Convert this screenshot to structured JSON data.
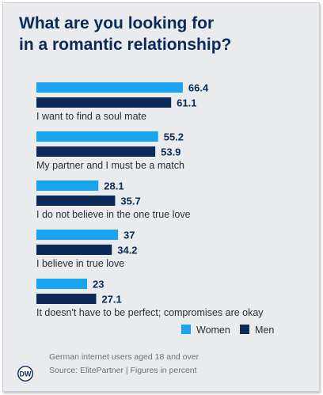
{
  "title_lines": [
    "What are you looking for",
    "in a romantic relationship?"
  ],
  "chart_data": {
    "type": "bar",
    "title": "What are you looking for in a romantic relationship?",
    "categories": [
      "I want to find a soul mate",
      "My partner and I must be a match",
      "I do not believe in the one true love",
      "I believe in true love",
      "It doesn't have to be perfect; compromises are okay"
    ],
    "series": [
      {
        "name": "Women",
        "values": [
          66.4,
          55.2,
          28.1,
          37,
          23
        ],
        "labels": [
          "66.4",
          "55.2",
          "28.1",
          "37",
          "23"
        ],
        "color": "#1aa3ef"
      },
      {
        "name": "Men",
        "values": [
          61.1,
          53.9,
          35.7,
          34.2,
          27.1
        ],
        "labels": [
          "61.1",
          "53.9",
          "35.7",
          "34.2",
          "27.1"
        ],
        "color": "#0b2a57"
      }
    ],
    "orientation": "horizontal",
    "legend_position": "bottom-right",
    "grid": false
  },
  "footer": {
    "note": "German internet users aged 18 and over",
    "source": "Source: ElitePartner | Figures in percent"
  },
  "logo": {
    "text": "DW"
  },
  "colors": {
    "text": "#0b2a57",
    "background": "#e9ebed"
  }
}
